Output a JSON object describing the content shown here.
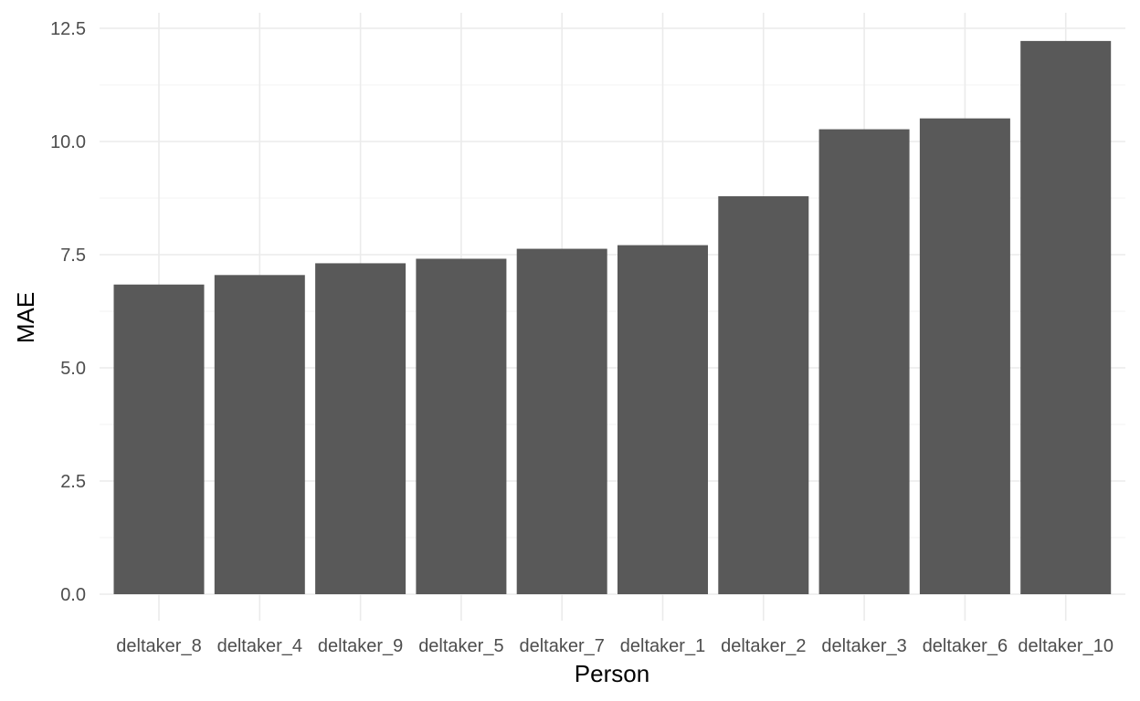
{
  "chart_data": {
    "type": "bar",
    "categories": [
      "deltaker_8",
      "deltaker_4",
      "deltaker_9",
      "deltaker_5",
      "deltaker_7",
      "deltaker_1",
      "deltaker_2",
      "deltaker_3",
      "deltaker_6",
      "deltaker_10"
    ],
    "values": [
      6.84,
      7.05,
      7.31,
      7.41,
      7.63,
      7.71,
      8.79,
      10.27,
      10.51,
      12.22
    ],
    "xlabel": "Person",
    "ylabel": "MAE",
    "ylim": [
      0,
      12.5
    ],
    "yticks": [
      "0.0",
      "2.5",
      "5.0",
      "7.5",
      "10.0",
      "12.5"
    ],
    "grid": true,
    "bar_color": "#595959"
  }
}
